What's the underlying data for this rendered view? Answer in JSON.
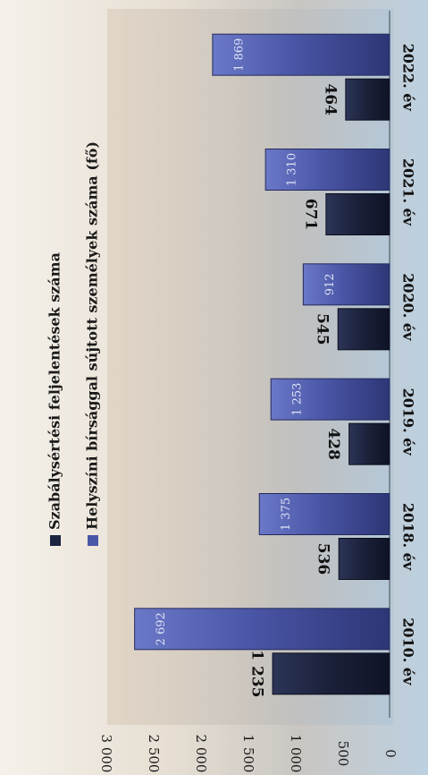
{
  "chart_data": {
    "type": "bar",
    "orientation": "rotated-90-cw",
    "categories": [
      "2010. év",
      "2018. év",
      "2019. év",
      "2020. év",
      "2021. év",
      "2022. év"
    ],
    "series": [
      {
        "name": "Szabálysértési feljelentések száma",
        "values": [
          1235,
          536,
          428,
          545,
          671,
          464
        ],
        "labels": [
          "1 235",
          "536",
          "428",
          "545",
          "671",
          "464"
        ],
        "color": "#1c2340"
      },
      {
        "name": "Helyszíni bírsággal sújtott személyek száma (fő)",
        "values": [
          2692,
          1375,
          1253,
          912,
          1310,
          1869
        ],
        "labels": [
          "2 692",
          "1 375",
          "1 253",
          "912",
          "1 310",
          "1 869"
        ],
        "color": "#4a56a6"
      }
    ],
    "ylim": [
      0,
      3000
    ],
    "yticks": [
      0,
      500,
      1000,
      1500,
      2000,
      2500,
      3000
    ],
    "ytick_labels": [
      "0",
      "500",
      "1 000",
      "1 500",
      "2 000",
      "2 500",
      "3 000"
    ],
    "legend_position": "top",
    "grid": false
  }
}
